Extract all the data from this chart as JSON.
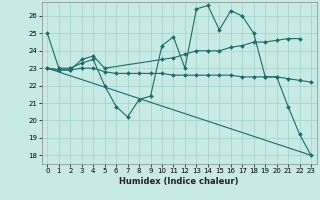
{
  "xlabel": "Humidex (Indice chaleur)",
  "xlim": [
    -0.5,
    23.5
  ],
  "ylim": [
    17.5,
    26.8
  ],
  "yticks": [
    18,
    19,
    20,
    21,
    22,
    23,
    24,
    25,
    26
  ],
  "xticks": [
    0,
    1,
    2,
    3,
    4,
    5,
    6,
    7,
    8,
    9,
    10,
    11,
    12,
    13,
    14,
    15,
    16,
    17,
    18,
    19,
    20,
    21,
    22,
    23
  ],
  "bg_color": "#c8eae4",
  "line_color": "#1a6b6b",
  "grid_color": "#a0d4cc",
  "lines": [
    {
      "x": [
        0,
        1,
        2,
        3,
        4,
        5,
        6,
        7,
        8,
        9,
        10,
        11,
        12,
        13,
        14,
        15,
        16,
        17,
        18,
        19,
        20,
        21,
        22,
        23
      ],
      "y": [
        25,
        23,
        23,
        23.3,
        23.5,
        22,
        20.8,
        20.2,
        21.2,
        21.4,
        24.3,
        24.8,
        23.0,
        26.4,
        26.6,
        25.2,
        26.3,
        26.0,
        25.0,
        22.5,
        22.5,
        20.8,
        19.2,
        18.0
      ],
      "marker": true
    },
    {
      "x": [
        0,
        1,
        2,
        3,
        4,
        5,
        10,
        11,
        12,
        13,
        14,
        15,
        16,
        17,
        18,
        19,
        20,
        21,
        22
      ],
      "y": [
        23,
        22.9,
        22.9,
        23.5,
        23.7,
        23.0,
        23.5,
        23.6,
        23.8,
        24.0,
        24.0,
        24.0,
        24.2,
        24.3,
        24.5,
        24.5,
        24.6,
        24.7,
        24.7
      ],
      "marker": true
    },
    {
      "x": [
        0,
        1,
        2,
        3,
        4,
        5,
        6,
        7,
        8,
        9,
        10,
        11,
        12,
        13,
        14,
        15,
        16,
        17,
        18,
        19,
        20,
        21,
        22,
        23
      ],
      "y": [
        23,
        22.9,
        22.9,
        23.0,
        23.0,
        22.8,
        22.7,
        22.7,
        22.7,
        22.7,
        22.7,
        22.6,
        22.6,
        22.6,
        22.6,
        22.6,
        22.6,
        22.5,
        22.5,
        22.5,
        22.5,
        22.4,
        22.3,
        22.2
      ],
      "marker": true
    },
    {
      "x": [
        0,
        23
      ],
      "y": [
        23,
        18
      ],
      "marker": false
    }
  ]
}
